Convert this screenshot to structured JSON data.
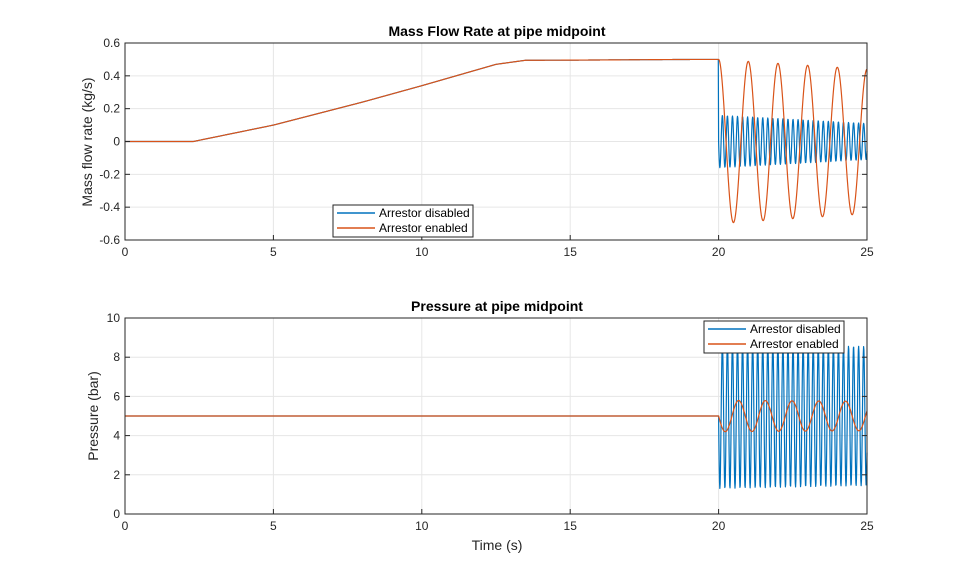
{
  "chart_data": [
    {
      "type": "line",
      "title": "Mass Flow Rate at pipe midpoint",
      "xlabel": "",
      "ylabel": "Mass flow rate (kg/s)",
      "xlim": [
        0,
        25
      ],
      "ylim": [
        -0.6,
        0.6
      ],
      "xticks": [
        0,
        5,
        10,
        15,
        20,
        25
      ],
      "yticks": [
        -0.6,
        -0.4,
        -0.2,
        0,
        0.2,
        0.4,
        0.6
      ],
      "xtick_labels": [
        "0",
        "5",
        "10",
        "15",
        "20",
        "25"
      ],
      "ytick_labels": [
        "-0.6",
        "-0.4",
        "-0.2",
        "0",
        "0.2",
        "0.4",
        "0.6"
      ],
      "grid": true,
      "legend_position": "bottom-left",
      "series": [
        {
          "name": "Arrestor disabled",
          "color": "#0072BD",
          "ramp_points": [
            [
              0,
              0
            ],
            [
              2.3,
              0
            ],
            [
              5,
              0.1
            ],
            [
              8,
              0.24
            ],
            [
              10,
              0.34
            ],
            [
              12.5,
              0.47
            ],
            [
              13.5,
              0.495
            ],
            [
              20,
              0.5
            ]
          ],
          "oscillation": {
            "start": 20,
            "end": 25,
            "period": 0.17,
            "amplitude_start": 0.16,
            "amplitude_end": 0.11,
            "offset": 0
          }
        },
        {
          "name": "Arrestor enabled",
          "color": "#D95319",
          "ramp_points": [
            [
              0,
              0
            ],
            [
              2.3,
              0
            ],
            [
              5,
              0.1
            ],
            [
              8,
              0.24
            ],
            [
              10,
              0.34
            ],
            [
              12.5,
              0.47
            ],
            [
              13.5,
              0.495
            ],
            [
              20,
              0.5
            ]
          ],
          "oscillation": {
            "start": 20,
            "end": 25,
            "period": 1.0,
            "amplitude_start": 0.5,
            "amplitude_end": 0.44,
            "offset": 0,
            "phase": "cosine"
          }
        }
      ]
    },
    {
      "type": "line",
      "title": "Pressure at pipe midpoint",
      "xlabel": "Time (s)",
      "ylabel": "Pressure (bar)",
      "xlim": [
        0,
        25
      ],
      "ylim": [
        0,
        10
      ],
      "xticks": [
        0,
        5,
        10,
        15,
        20,
        25
      ],
      "yticks": [
        0,
        2,
        4,
        6,
        8,
        10
      ],
      "xtick_labels": [
        "0",
        "5",
        "10",
        "15",
        "20",
        "25"
      ],
      "ytick_labels": [
        "0",
        "2",
        "4",
        "6",
        "8",
        "10"
      ],
      "grid": true,
      "legend_position": "top-right",
      "series": [
        {
          "name": "Arrestor disabled",
          "color": "#0072BD",
          "steady_value": 5.0,
          "oscillation": {
            "start": 20,
            "end": 25,
            "period": 0.17,
            "amplitude_start": 3.7,
            "amplitude_end": 3.55,
            "offset": 5.0
          }
        },
        {
          "name": "Arrestor enabled",
          "color": "#D95319",
          "steady_value": 5.0,
          "oscillation": {
            "start": 20,
            "end": 25,
            "period": 0.9,
            "amplitude_start": 0.8,
            "amplitude_end": 0.75,
            "offset": 5.0
          }
        }
      ]
    }
  ]
}
